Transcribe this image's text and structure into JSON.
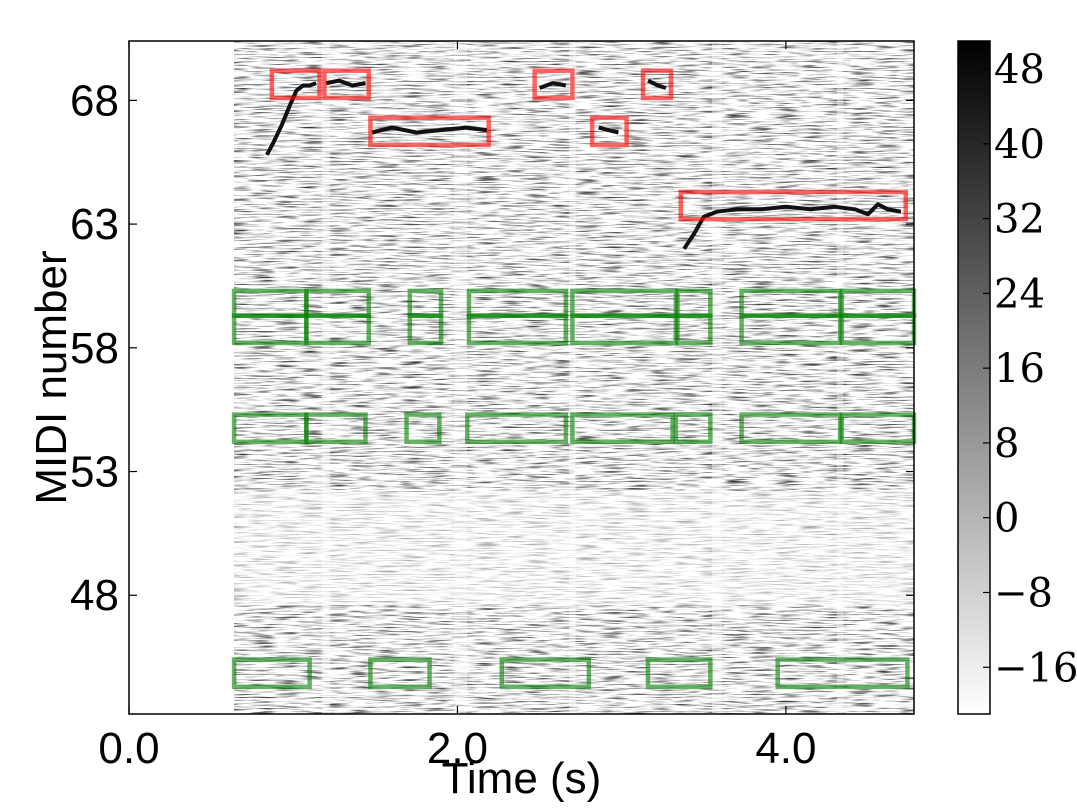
{
  "chart_data": {
    "type": "heatmap",
    "title": "",
    "xlabel": "Time (s)",
    "ylabel": "MIDI number",
    "xlim": [
      0.0,
      4.78
    ],
    "ylim": [
      43.2,
      70.4
    ],
    "x_ticks": [
      0.0,
      2.0,
      4.0
    ],
    "x_tick_labels": [
      "0.0",
      "2.0",
      "4.0"
    ],
    "y_ticks": [
      48,
      53,
      58,
      63,
      68
    ],
    "y_tick_labels": [
      "48",
      "53",
      "58",
      "63",
      "68"
    ],
    "colormap": "gray_r",
    "colorbar": {
      "range": [
        -21,
        51
      ],
      "ticks": [
        -16,
        -8,
        0,
        8,
        16,
        24,
        32,
        40,
        48
      ],
      "tick_labels": [
        "−16",
        "−8",
        "0",
        "8",
        "16",
        "24",
        "32",
        "40",
        "48"
      ]
    },
    "signal_start": 0.64,
    "red_boxes": [
      {
        "x0": 0.87,
        "x1": 1.16,
        "y0": 68.1,
        "y1": 69.2
      },
      {
        "x0": 1.19,
        "x1": 1.46,
        "y0": 68.1,
        "y1": 69.2
      },
      {
        "x0": 1.47,
        "x1": 2.19,
        "y0": 66.2,
        "y1": 67.3
      },
      {
        "x0": 2.47,
        "x1": 2.7,
        "y0": 68.1,
        "y1": 69.2
      },
      {
        "x0": 2.82,
        "x1": 3.03,
        "y0": 66.2,
        "y1": 67.3
      },
      {
        "x0": 3.13,
        "x1": 3.3,
        "y0": 68.1,
        "y1": 69.2
      },
      {
        "x0": 3.36,
        "x1": 4.73,
        "y0": 63.2,
        "y1": 64.3
      }
    ],
    "green_boxes": [
      {
        "x0": 0.64,
        "x1": 1.08,
        "y0": 59.3,
        "y1": 60.3
      },
      {
        "x0": 0.64,
        "x1": 1.08,
        "y0": 58.2,
        "y1": 59.3
      },
      {
        "x0": 1.08,
        "x1": 1.46,
        "y0": 59.3,
        "y1": 60.3
      },
      {
        "x0": 1.08,
        "x1": 1.46,
        "y0": 58.2,
        "y1": 59.3
      },
      {
        "x0": 1.71,
        "x1": 1.9,
        "y0": 59.3,
        "y1": 60.3
      },
      {
        "x0": 1.71,
        "x1": 1.9,
        "y0": 58.2,
        "y1": 59.3
      },
      {
        "x0": 2.07,
        "x1": 2.66,
        "y0": 59.3,
        "y1": 60.3
      },
      {
        "x0": 2.07,
        "x1": 2.66,
        "y0": 58.2,
        "y1": 59.3
      },
      {
        "x0": 2.7,
        "x1": 3.33,
        "y0": 59.3,
        "y1": 60.3
      },
      {
        "x0": 2.7,
        "x1": 3.33,
        "y0": 58.2,
        "y1": 59.3
      },
      {
        "x0": 3.34,
        "x1": 3.54,
        "y0": 59.3,
        "y1": 60.3
      },
      {
        "x0": 3.34,
        "x1": 3.54,
        "y0": 58.2,
        "y1": 59.3
      },
      {
        "x0": 3.73,
        "x1": 4.33,
        "y0": 59.3,
        "y1": 60.3
      },
      {
        "x0": 3.73,
        "x1": 4.33,
        "y0": 58.2,
        "y1": 59.3
      },
      {
        "x0": 4.34,
        "x1": 4.78,
        "y0": 59.3,
        "y1": 60.3
      },
      {
        "x0": 4.34,
        "x1": 4.78,
        "y0": 58.2,
        "y1": 59.3
      },
      {
        "x0": 0.64,
        "x1": 1.08,
        "y0": 54.2,
        "y1": 55.3
      },
      {
        "x0": 1.08,
        "x1": 1.44,
        "y0": 54.2,
        "y1": 55.3
      },
      {
        "x0": 1.69,
        "x1": 1.89,
        "y0": 54.2,
        "y1": 55.3
      },
      {
        "x0": 2.06,
        "x1": 2.66,
        "y0": 54.2,
        "y1": 55.3
      },
      {
        "x0": 2.7,
        "x1": 3.31,
        "y0": 54.2,
        "y1": 55.3
      },
      {
        "x0": 3.33,
        "x1": 3.54,
        "y0": 54.2,
        "y1": 55.3
      },
      {
        "x0": 3.73,
        "x1": 4.33,
        "y0": 54.2,
        "y1": 55.3
      },
      {
        "x0": 4.34,
        "x1": 4.78,
        "y0": 54.2,
        "y1": 55.3
      },
      {
        "x0": 0.64,
        "x1": 1.1,
        "y0": 44.3,
        "y1": 45.4
      },
      {
        "x0": 1.47,
        "x1": 1.83,
        "y0": 44.3,
        "y1": 45.4
      },
      {
        "x0": 2.27,
        "x1": 2.8,
        "y0": 44.3,
        "y1": 45.4
      },
      {
        "x0": 3.16,
        "x1": 3.54,
        "y0": 44.3,
        "y1": 45.4
      },
      {
        "x0": 3.95,
        "x1": 4.74,
        "y0": 44.3,
        "y1": 45.4
      }
    ],
    "pitch_traces": [
      [
        [
          0.84,
          65.8
        ],
        [
          0.88,
          66.3
        ],
        [
          0.93,
          67.0
        ],
        [
          0.98,
          67.8
        ],
        [
          1.02,
          68.4
        ],
        [
          1.06,
          68.6
        ],
        [
          1.1,
          68.6
        ],
        [
          1.14,
          68.7
        ]
      ],
      [
        [
          1.2,
          68.7
        ],
        [
          1.28,
          68.8
        ],
        [
          1.36,
          68.6
        ],
        [
          1.44,
          68.7
        ]
      ],
      [
        [
          1.48,
          66.7
        ],
        [
          1.6,
          66.9
        ],
        [
          1.75,
          66.7
        ],
        [
          1.9,
          66.8
        ],
        [
          2.05,
          66.9
        ],
        [
          2.18,
          66.8
        ]
      ],
      [
        [
          2.5,
          68.5
        ],
        [
          2.58,
          68.7
        ],
        [
          2.66,
          68.6
        ]
      ],
      [
        [
          2.86,
          66.9
        ],
        [
          2.92,
          66.8
        ],
        [
          2.98,
          66.7
        ]
      ],
      [
        [
          3.16,
          68.8
        ],
        [
          3.22,
          68.6
        ],
        [
          3.27,
          68.5
        ]
      ],
      [
        [
          3.38,
          62.0
        ],
        [
          3.44,
          62.6
        ],
        [
          3.5,
          63.3
        ],
        [
          3.58,
          63.5
        ],
        [
          3.7,
          63.6
        ],
        [
          3.85,
          63.6
        ],
        [
          4.0,
          63.7
        ],
        [
          4.15,
          63.6
        ],
        [
          4.3,
          63.7
        ],
        [
          4.42,
          63.6
        ],
        [
          4.5,
          63.4
        ],
        [
          4.56,
          63.8
        ],
        [
          4.62,
          63.6
        ],
        [
          4.7,
          63.5
        ]
      ]
    ]
  }
}
